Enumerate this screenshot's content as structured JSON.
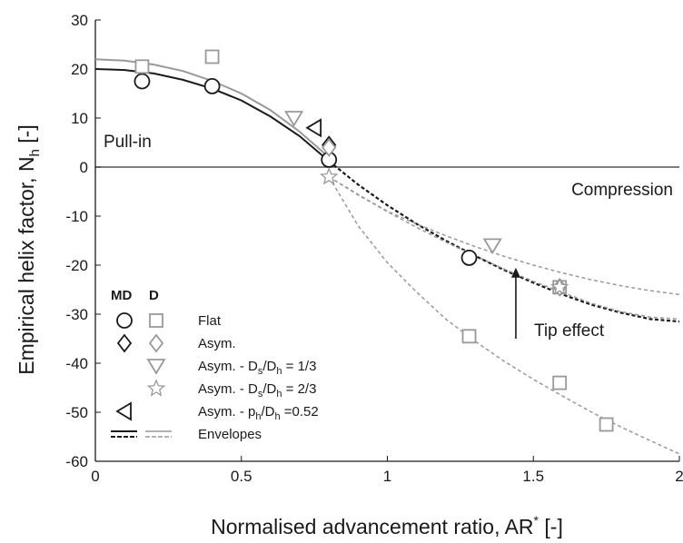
{
  "chart_data": {
    "type": "scatter",
    "xlabel": "Normalised advancement ratio, AR",
    "xlabel_sup": "*",
    "xlabel_unit": "[-]",
    "ylabel": "Empirical helix factor, N",
    "ylabel_sub": "h",
    "ylabel_unit": "[-]",
    "xlim": [
      0,
      2
    ],
    "ylim": [
      -60,
      30
    ],
    "xticks": [
      {
        "value": 0,
        "label": "0"
      },
      {
        "value": 0.5,
        "label": "0.5"
      },
      {
        "value": 1,
        "label": "1"
      },
      {
        "value": 1.5,
        "label": "1.5"
      },
      {
        "value": 2,
        "label": "2"
      }
    ],
    "yticks": [
      {
        "value": 30,
        "label": "30"
      },
      {
        "value": 20,
        "label": "20"
      },
      {
        "value": 10,
        "label": "10"
      },
      {
        "value": 0,
        "label": "0"
      },
      {
        "value": -10,
        "label": "-10"
      },
      {
        "value": -20,
        "label": "-20"
      },
      {
        "value": -30,
        "label": "-30"
      },
      {
        "value": -40,
        "label": "-40"
      },
      {
        "value": -50,
        "label": "-50"
      },
      {
        "value": -60,
        "label": "-60"
      }
    ],
    "grid": false,
    "legend_position": "bottom-left",
    "colors": {
      "md": "#1a1a1a",
      "d": "#999999",
      "zero_line": "#555555"
    },
    "annotations": {
      "pull_in": "Pull-in",
      "compression": "Compression",
      "tip_effect": "Tip effect",
      "tip_arrow_from": {
        "x": 1.44,
        "y": -35
      },
      "tip_arrow_to": {
        "x": 1.44,
        "y": -20.5
      }
    },
    "legend": {
      "header_md": "MD",
      "header_d": "D",
      "entries": [
        {
          "label": "Flat",
          "md_marker": "circle",
          "d_marker": "square"
        },
        {
          "label": "Asym.",
          "md_marker": "diamond",
          "d_marker": "diamond"
        },
        {
          "label": "Asym. - D",
          "sub": "s",
          "label_mid": "/D",
          "sub2": "h",
          "label_end": " = 1/3",
          "md_marker": "",
          "d_marker": "triangle-down"
        },
        {
          "label": "Asym. - D",
          "sub": "s",
          "label_mid": "/D",
          "sub2": "h",
          "label_end": " = 2/3",
          "md_marker": "",
          "d_marker": "star"
        },
        {
          "label": "Asym. - p",
          "sub": "h",
          "label_mid": "/D",
          "sub2": "h",
          "label_end": " =0.52",
          "md_marker": "triangle-left",
          "d_marker": ""
        },
        {
          "label": "Envelopes",
          "md_marker": "lines",
          "d_marker": "lines"
        }
      ]
    },
    "series": [
      {
        "name": "MD Flat",
        "group": "MD",
        "marker": "circle",
        "points": [
          {
            "x": 0.16,
            "y": 17.5
          },
          {
            "x": 0.4,
            "y": 16.5
          },
          {
            "x": 0.8,
            "y": 1.5
          },
          {
            "x": 1.28,
            "y": -18.5
          }
        ]
      },
      {
        "name": "MD Asym.",
        "group": "MD",
        "marker": "diamond",
        "points": [
          {
            "x": 0.8,
            "y": 4.5
          }
        ]
      },
      {
        "name": "MD Asym. - ph/Dh =0.52",
        "group": "MD",
        "marker": "triangle-left",
        "points": [
          {
            "x": 0.75,
            "y": 8
          }
        ]
      },
      {
        "name": "D Flat",
        "group": "D",
        "marker": "square",
        "points": [
          {
            "x": 0.16,
            "y": 20.5
          },
          {
            "x": 0.4,
            "y": 22.5
          },
          {
            "x": 1.28,
            "y": -34.5
          },
          {
            "x": 1.59,
            "y": -44
          },
          {
            "x": 1.75,
            "y": -52.5
          },
          {
            "x": 1.59,
            "y": -24.5
          }
        ]
      },
      {
        "name": "D Asym.",
        "group": "D",
        "marker": "diamond",
        "points": [
          {
            "x": 0.8,
            "y": 4
          },
          {
            "x": 1.59,
            "y": -24.5
          }
        ]
      },
      {
        "name": "D Asym. - Ds/Dh = 1/3",
        "group": "D",
        "marker": "triangle-down",
        "points": [
          {
            "x": 0.68,
            "y": 10
          },
          {
            "x": 1.36,
            "y": -16
          }
        ]
      },
      {
        "name": "D Asym. - Ds/Dh = 2/3",
        "group": "D",
        "marker": "star",
        "points": [
          {
            "x": 0.8,
            "y": -2
          },
          {
            "x": 1.59,
            "y": -24.5
          }
        ]
      }
    ],
    "envelopes": [
      {
        "name": "MD envelope solid",
        "group": "MD",
        "style": "solid",
        "points": [
          [
            0,
            20
          ],
          [
            0.1,
            19.8
          ],
          [
            0.2,
            19.1
          ],
          [
            0.3,
            17.8
          ],
          [
            0.4,
            16
          ],
          [
            0.5,
            13.6
          ],
          [
            0.6,
            10.3
          ],
          [
            0.7,
            6.3
          ],
          [
            0.8,
            1.2
          ]
        ]
      },
      {
        "name": "D envelope solid",
        "group": "D",
        "style": "solid",
        "points": [
          [
            0,
            22
          ],
          [
            0.1,
            21.7
          ],
          [
            0.2,
            20.9
          ],
          [
            0.3,
            19.6
          ],
          [
            0.4,
            17.6
          ],
          [
            0.5,
            15
          ],
          [
            0.6,
            11.6
          ],
          [
            0.7,
            7.2
          ],
          [
            0.8,
            2
          ]
        ]
      },
      {
        "name": "MD envelope dashed",
        "group": "MD",
        "style": "dashed",
        "points": [
          [
            0.8,
            1.2
          ],
          [
            0.9,
            -3.6
          ],
          [
            1,
            -7.8
          ],
          [
            1.1,
            -11.6
          ],
          [
            1.2,
            -15
          ],
          [
            1.3,
            -18.1
          ],
          [
            1.4,
            -21
          ],
          [
            1.5,
            -23.6
          ],
          [
            1.6,
            -26
          ],
          [
            1.7,
            -28.1
          ],
          [
            1.8,
            -29.7
          ],
          [
            1.9,
            -31
          ],
          [
            2,
            -31.5
          ]
        ]
      },
      {
        "name": "D envelope dashed upper",
        "group": "D",
        "style": "dashed",
        "points": [
          [
            0.8,
            -2
          ],
          [
            0.9,
            -5.6
          ],
          [
            1,
            -9
          ],
          [
            1.1,
            -11.6
          ],
          [
            1.2,
            -14
          ],
          [
            1.3,
            -16.2
          ],
          [
            1.4,
            -18.2
          ],
          [
            1.5,
            -20
          ],
          [
            1.6,
            -21.6
          ],
          [
            1.7,
            -23
          ],
          [
            1.8,
            -24.2
          ],
          [
            1.9,
            -25.2
          ],
          [
            2,
            -26
          ]
        ]
      },
      {
        "name": "D envelope dashed middle",
        "group": "D",
        "style": "dashed",
        "points": [
          [
            0.8,
            -2
          ],
          [
            0.9,
            -5.7
          ],
          [
            1,
            -9.1
          ],
          [
            1.1,
            -12.3
          ],
          [
            1.2,
            -15.3
          ],
          [
            1.3,
            -18.1
          ],
          [
            1.4,
            -20.8
          ],
          [
            1.5,
            -23.3
          ],
          [
            1.6,
            -25.6
          ],
          [
            1.7,
            -27.8
          ],
          [
            1.8,
            -29.5
          ],
          [
            1.9,
            -30.6
          ],
          [
            2,
            -31
          ]
        ]
      },
      {
        "name": "D envelope dashed lower",
        "group": "D",
        "style": "dashed",
        "points": [
          [
            0.8,
            -2
          ],
          [
            0.9,
            -12
          ],
          [
            1,
            -19.5
          ],
          [
            1.1,
            -25.5
          ],
          [
            1.2,
            -31
          ],
          [
            1.3,
            -35.5
          ],
          [
            1.4,
            -39.6
          ],
          [
            1.5,
            -43.3
          ],
          [
            1.6,
            -46.7
          ],
          [
            1.7,
            -50
          ],
          [
            1.8,
            -53
          ],
          [
            1.9,
            -55.8
          ],
          [
            2,
            -58.5
          ]
        ]
      }
    ]
  }
}
